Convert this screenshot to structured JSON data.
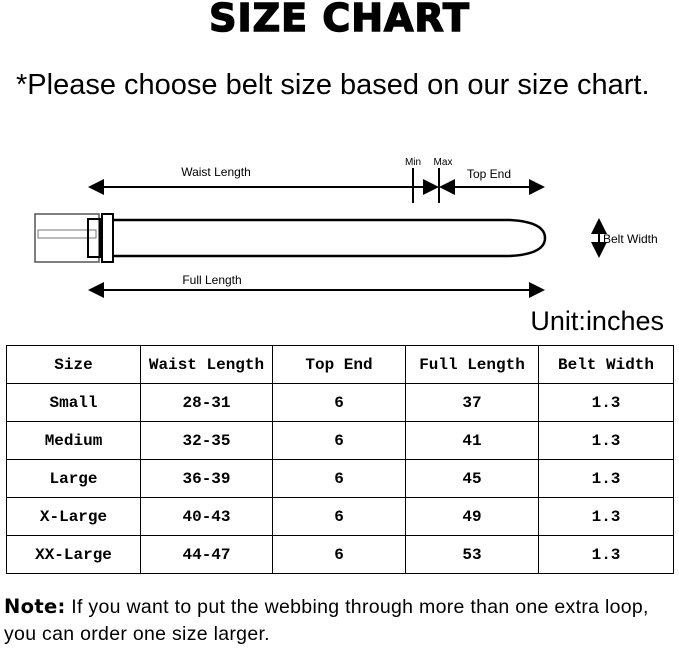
{
  "title": "SIZE CHART",
  "intro": "*Please choose belt size based on our size chart.",
  "diagram": {
    "waist_length": "Waist Length",
    "min": "Min",
    "max": "Max",
    "top_end": "Top End",
    "belt_width": "Belt Width",
    "full_length": "Full Length"
  },
  "unit": "Unit:inches",
  "table": {
    "headers": [
      "Size",
      "Waist Length",
      "Top End",
      "Full Length",
      "Belt Width"
    ],
    "rows": [
      [
        "Small",
        "28-31",
        "6",
        "37",
        "1.3"
      ],
      [
        "Medium",
        "32-35",
        "6",
        "41",
        "1.3"
      ],
      [
        "Large",
        "36-39",
        "6",
        "45",
        "1.3"
      ],
      [
        "X-Large",
        "40-43",
        "6",
        "49",
        "1.3"
      ],
      [
        "XX-Large",
        "44-47",
        "6",
        "53",
        "1.3"
      ]
    ]
  },
  "note": {
    "label": "Note:",
    "text": " If you want to put the webbing through more than one extra loop,  you can order one size larger."
  }
}
